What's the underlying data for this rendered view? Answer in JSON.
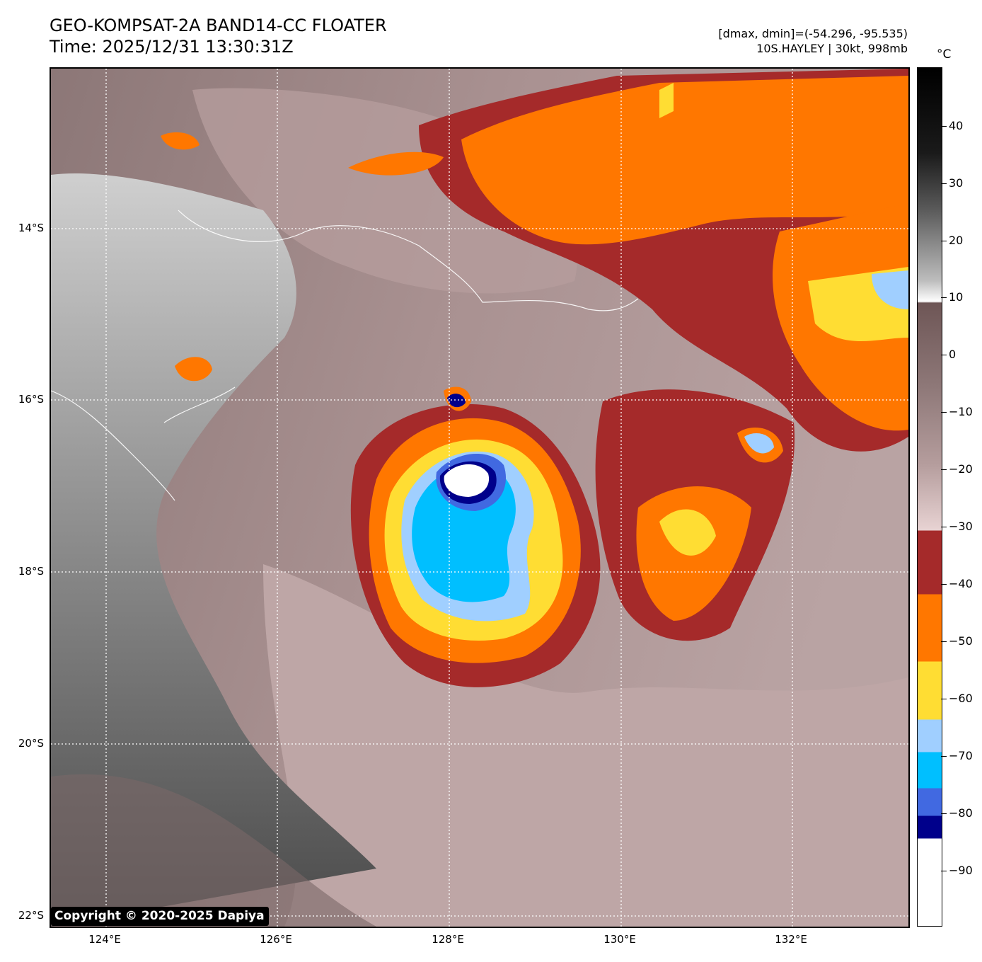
{
  "header": {
    "title_line1": "GEO-KOMPSAT-2A BAND14-CC FLOATER",
    "title_line2": "Time: 2025/12/31 13:30:31Z",
    "stats_line": "[dmax, dmin]=(-54.296, -95.535)",
    "storm_line": "10S.HAYLEY | 30kt, 998mb"
  },
  "map": {
    "lat_labels": [
      "14°S",
      "16°S",
      "18°S",
      "20°S",
      "22°S"
    ],
    "lon_labels": [
      "124°E",
      "126°E",
      "128°E",
      "130°E",
      "132°E"
    ],
    "gridlines": "dotted white",
    "storm_center": {
      "lat": "16.8°S",
      "lon": "128.2°E"
    }
  },
  "colorbar": {
    "unit": "°C",
    "range": [
      -100,
      50
    ],
    "tick_labels": [
      "40",
      "30",
      "20",
      "10",
      "0",
      "−10",
      "−20",
      "−30",
      "−40",
      "−50",
      "−60",
      "−70",
      "−80",
      "−90"
    ],
    "colors": {
      "white_cold": "#ffffff",
      "navy": "#00008b",
      "royal_blue": "#4169e1",
      "deep_sky_blue": "#00bfff",
      "light_blue": "#a0cfff",
      "gold": "#ffdd33",
      "orange": "#ff7700",
      "brown_red": "#a52a2a",
      "warm_gray": "#6e5656"
    }
  },
  "footer": {
    "copyright": "Copyright © 2020-2025 Dapiya"
  }
}
